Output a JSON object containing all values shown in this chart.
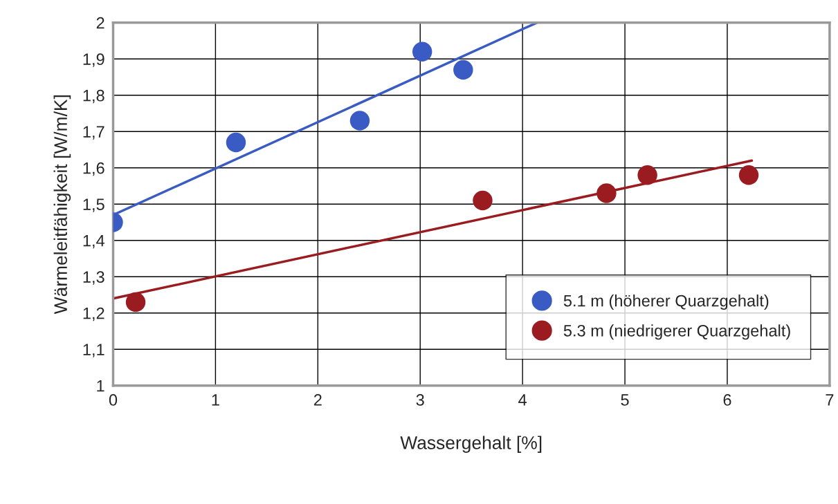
{
  "chart_data": {
    "type": "scatter",
    "xlabel": "Wassergehalt [%]",
    "ylabel": "Wärmeleitfähigkeit [W/m/K]",
    "xlim": [
      0,
      7
    ],
    "xticks": [
      0,
      1,
      2,
      3,
      4,
      5,
      6,
      7
    ],
    "ylim": [
      1,
      2
    ],
    "yticks": [
      1,
      {
        "value": 1.1,
        "label": "1,1"
      },
      {
        "value": 1.2,
        "label": "1,2"
      },
      {
        "value": 1.3,
        "label": "1,3"
      },
      {
        "value": 1.4,
        "label": "1,4"
      },
      {
        "value": 1.5,
        "label": "1,5"
      },
      {
        "value": 1.6,
        "label": "1,6"
      },
      {
        "value": 1.7,
        "label": "1,7"
      },
      {
        "value": 1.8,
        "label": "1,8"
      },
      {
        "value": 1.9,
        "label": "1,9"
      },
      2
    ],
    "grid": true,
    "legend": "bottom right",
    "marker": "circle",
    "series": [
      {
        "name": "5.1 m (höherer Quarzgehalt)",
        "color": "#3a5bc4",
        "x": [
          0,
          1.2,
          2.41,
          3.02,
          3.42
        ],
        "values": [
          1.45,
          1.67,
          1.73,
          1.92,
          1.87
        ]
      },
      {
        "name": "5.3 m (niedrigerer Quarzgehalt)",
        "color": "#9b1c20",
        "x": [
          0.22,
          3.61,
          4.82,
          5.22,
          6.21
        ],
        "values": [
          1.23,
          1.51,
          1.53,
          1.58,
          1.58
        ]
      },
      {
        "type": "line",
        "marker": "none",
        "color": "#3a5bc4",
        "x": [
          0,
          4.14
        ],
        "values": [
          1.47,
          2.0
        ]
      },
      {
        "type": "line",
        "marker": "none",
        "color": "#9b1c20",
        "x": [
          0,
          6.24
        ],
        "values": [
          1.24,
          1.62
        ]
      }
    ]
  }
}
